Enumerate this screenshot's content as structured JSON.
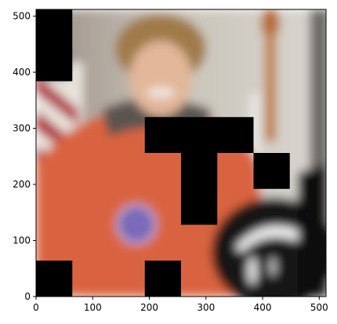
{
  "figure": {
    "subject": "astronaut portrait",
    "axes": {
      "x_ticks": [
        0,
        100,
        200,
        300,
        400,
        500
      ],
      "y_ticks": [
        0,
        100,
        200,
        300,
        400,
        500
      ],
      "x_range": [
        0,
        512
      ],
      "y_range": [
        0,
        512
      ]
    },
    "occlusion_blocks": [
      {
        "x": [
          0,
          64
        ],
        "y": [
          384,
          512
        ]
      },
      {
        "x": [
          192,
          384
        ],
        "y": [
          256,
          320
        ]
      },
      {
        "x": [
          256,
          320
        ],
        "y": [
          128,
          256
        ]
      },
      {
        "x": [
          384,
          448
        ],
        "y": [
          192,
          256
        ]
      },
      {
        "x": [
          0,
          64
        ],
        "y": [
          0,
          64
        ]
      },
      {
        "x": [
          192,
          256
        ],
        "y": [
          0,
          64
        ]
      }
    ],
    "colors": {
      "block": "#000000",
      "suit": "#d9643f",
      "background": "#b8b4ac",
      "flag_red": "#b0303a",
      "helmet": "#111111"
    }
  }
}
